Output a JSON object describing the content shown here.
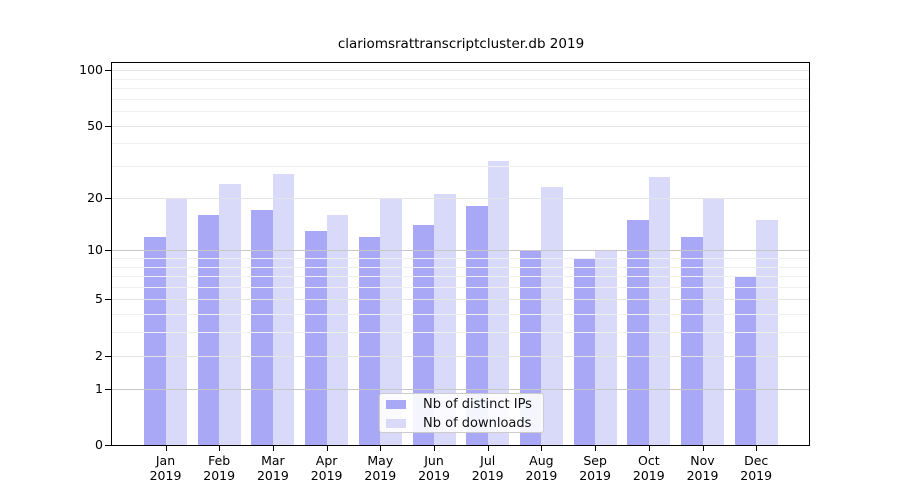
{
  "chart_data": {
    "type": "bar",
    "title": "clariomsrattranscriptcluster.db 2019",
    "y_scale": "log10(value+1)",
    "grid": true,
    "legend_position": "bottom-center",
    "categories": [
      "Jan",
      "Feb",
      "Mar",
      "Apr",
      "May",
      "Jun",
      "Jul",
      "Aug",
      "Sep",
      "Oct",
      "Nov",
      "Dec"
    ],
    "x_sublabel_year": "2019",
    "series": [
      {
        "name": "Nb of distinct IPs",
        "color": "#a8a8f6",
        "values": [
          12,
          16,
          17,
          13,
          12,
          14,
          18,
          10,
          9,
          15,
          12,
          7
        ]
      },
      {
        "name": "Nb of downloads",
        "color": "#d9d9f9",
        "values": [
          20,
          24,
          27,
          16,
          20,
          21,
          32,
          23,
          10,
          26,
          20,
          15
        ]
      }
    ],
    "y_ticks": [
      0,
      1,
      2,
      5,
      10,
      20,
      50,
      100
    ],
    "y_minor_gridlines": [
      3,
      4,
      6,
      7,
      8,
      9,
      30,
      40,
      60,
      70,
      80,
      90
    ],
    "ylim": [
      0,
      110
    ],
    "colors": {
      "axis": "#000000",
      "grid_decade": "#c8c8c8",
      "grid_major": "#e4e4e4",
      "grid_minor": "#f0f0f0",
      "background": "#ffffff",
      "legend_border": "#cccccc"
    }
  }
}
